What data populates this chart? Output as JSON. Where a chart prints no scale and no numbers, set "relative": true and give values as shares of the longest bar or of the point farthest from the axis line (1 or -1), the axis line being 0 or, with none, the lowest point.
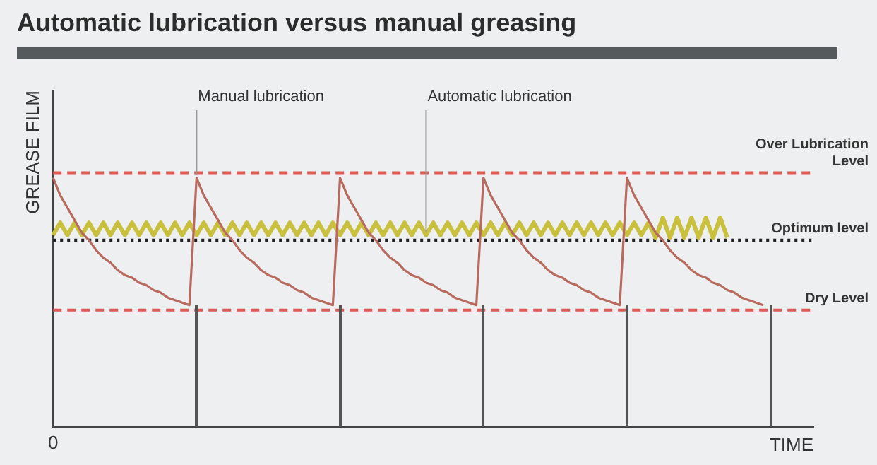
{
  "chart_data": {
    "type": "line",
    "title": "Automatic lubrication versus manual greasing",
    "xlabel": "TIME",
    "ylabel": "GREASE FILM",
    "relative": true,
    "categories": [
      null,
      null,
      null,
      null,
      null,
      null,
      null,
      null,
      null,
      null,
      null,
      null,
      null,
      null,
      null,
      null,
      null,
      null,
      null,
      null,
      null,
      null,
      null,
      null,
      null,
      null,
      null,
      null,
      null,
      null,
      null,
      null,
      null,
      null,
      null,
      null,
      null,
      null,
      null,
      null,
      null,
      null,
      null,
      null,
      null,
      null,
      null,
      null,
      null,
      null,
      null,
      null,
      null,
      null,
      null,
      null,
      null,
      null,
      null,
      null,
      null,
      null,
      null,
      null,
      null,
      null,
      null,
      null,
      null,
      null,
      null,
      null,
      null,
      null,
      null,
      null,
      null,
      null,
      null,
      null,
      null,
      null,
      null,
      null,
      null,
      null,
      null,
      null,
      null,
      null,
      null,
      null,
      null,
      null,
      null,
      null,
      null,
      null,
      null,
      null,
      null,
      null,
      null,
      null,
      null,
      null,
      null
    ],
    "series": [
      {
        "color": "#b86a5e",
        "values": [
          1,
          0.93,
          0.88,
          0.83,
          0.78,
          0.75,
          0.71,
          0.68,
          0.66,
          0.63,
          0.61,
          0.6,
          0.58,
          0.57,
          0.55,
          0.54,
          0.52,
          0.51,
          0.5,
          0.49,
          1,
          0.93,
          0.88,
          0.83,
          0.78,
          0.75,
          0.71,
          0.68,
          0.66,
          0.63,
          0.61,
          0.6,
          0.58,
          0.57,
          0.55,
          0.54,
          0.52,
          0.51,
          0.5,
          0.49,
          1,
          0.93,
          0.88,
          0.83,
          0.78,
          0.75,
          0.71,
          0.68,
          0.66,
          0.63,
          0.61,
          0.6,
          0.58,
          0.57,
          0.55,
          0.54,
          0.52,
          0.51,
          0.5,
          0.49,
          1,
          0.93,
          0.88,
          0.83,
          0.78,
          0.75,
          0.71,
          0.68,
          0.66,
          0.63,
          0.61,
          0.6,
          0.58,
          0.57,
          0.55,
          0.54,
          0.52,
          0.51,
          0.5,
          0.49,
          1,
          0.93,
          0.88,
          0.83,
          0.78,
          0.75,
          0.71,
          0.68,
          0.66,
          0.63,
          0.61,
          0.6,
          0.58,
          0.57,
          0.55,
          0.54,
          0.52,
          0.51,
          0.5,
          0.49,
          null,
          null,
          null,
          null,
          null,
          null,
          null
        ]
      },
      {
        "color": "#c9c13e",
        "values": [
          0.77,
          0.82,
          0.77,
          0.82,
          0.77,
          0.82,
          0.77,
          0.82,
          0.77,
          0.82,
          0.77,
          0.82,
          0.77,
          0.82,
          0.77,
          0.82,
          0.77,
          0.82,
          0.77,
          0.82,
          0.77,
          0.82,
          0.77,
          0.82,
          0.77,
          0.82,
          0.77,
          0.82,
          0.77,
          0.82,
          0.77,
          0.82,
          0.77,
          0.82,
          0.77,
          0.82,
          0.77,
          0.82,
          0.77,
          0.82,
          0.77,
          0.82,
          0.77,
          0.82,
          0.77,
          0.82,
          0.77,
          0.82,
          0.77,
          0.82,
          0.77,
          0.82,
          0.77,
          0.82,
          0.77,
          0.82,
          0.77,
          0.82,
          0.77,
          0.82,
          0.77,
          0.82,
          0.77,
          0.82,
          0.77,
          0.82,
          0.77,
          0.82,
          0.77,
          0.82,
          0.77,
          0.82,
          0.77,
          0.82,
          0.77,
          0.82,
          0.77,
          0.82,
          0.77,
          0.82,
          0.77,
          0.82,
          0.77,
          0.82,
          0.76,
          0.84,
          0.76,
          0.84,
          0.76,
          0.84,
          0.76,
          0.84,
          0.76,
          0.84,
          0.76,
          null,
          null,
          null,
          null,
          null,
          null,
          null,
          null,
          null,
          null,
          null,
          null
        ]
      }
    ],
    "ref_lines": [
      {
        "axis": "y",
        "value": 1.02,
        "label": "Over Lubrication Level",
        "color": "#e05a55",
        "line_style": "dashed"
      },
      {
        "axis": "y",
        "value": 0.75,
        "label": "Optimum level",
        "color": "#222222",
        "line_style": "dotted"
      },
      {
        "axis": "y",
        "value": 0.47,
        "label": "Dry Level",
        "color": "#e05a55",
        "line_style": "dashed"
      }
    ],
    "annotations": [
      "0",
      "Manual lubrication",
      "Automatic lubrication"
    ]
  }
}
